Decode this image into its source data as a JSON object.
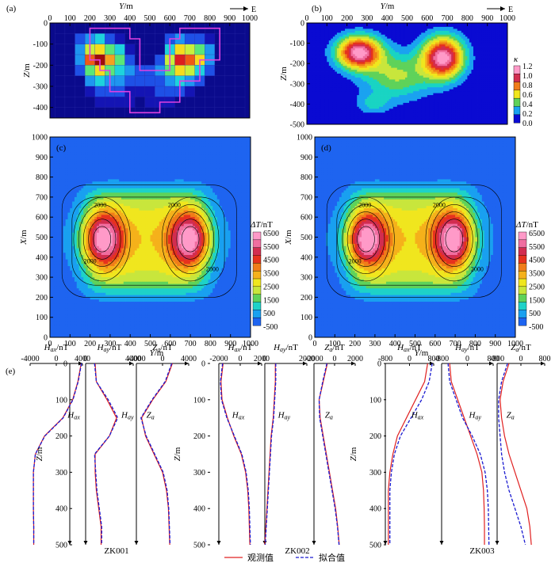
{
  "figure": {
    "legend": {
      "observed": "观测值",
      "fitted": "拟合值"
    },
    "wells": [
      "ZK001",
      "ZK002",
      "ZK003"
    ]
  },
  "chart_data": [
    {
      "id": "a",
      "label": "(a)",
      "type": "heatmap",
      "xlabel": "Y/m",
      "ylabel": "Z/m",
      "direction": "E",
      "xlim": [
        0,
        1000
      ],
      "ylim": [
        -450,
        0
      ],
      "xticks": [
        0,
        100,
        200,
        300,
        400,
        500,
        600,
        700,
        800,
        900,
        1000
      ],
      "yticks": [
        0,
        -100,
        -200,
        -300,
        -400
      ],
      "grid": {
        "x0": 50,
        "dx": 50,
        "nx": 19,
        "y0": 25,
        "dy": 50,
        "ny": 9
      },
      "values": [
        [
          0,
          0,
          0,
          0,
          0,
          0,
          0,
          0,
          0,
          0,
          0,
          0,
          0,
          0,
          0,
          0,
          0,
          0,
          0
        ],
        [
          0,
          0,
          0.3,
          0.4,
          0.5,
          0.3,
          0.2,
          0,
          0,
          0,
          0,
          0.3,
          0.4,
          0.3,
          0.3,
          0.2,
          0,
          0,
          0
        ],
        [
          0,
          0,
          0.35,
          0.7,
          0.8,
          0.6,
          0.45,
          0.2,
          0,
          0,
          0,
          0.5,
          0.8,
          0.7,
          0.6,
          0.4,
          0,
          0,
          0
        ],
        [
          0,
          0,
          0.4,
          1.0,
          1.2,
          0.9,
          0.6,
          0.3,
          0,
          0,
          0.3,
          0.7,
          1.1,
          1.0,
          0.8,
          0.4,
          0,
          0,
          0
        ],
        [
          0,
          0,
          0.3,
          0.6,
          0.8,
          0.6,
          0.5,
          0.4,
          0.3,
          0.3,
          0.4,
          0.6,
          0.8,
          0.7,
          0.5,
          0.3,
          0,
          0,
          0
        ],
        [
          0,
          0,
          0,
          0.4,
          0.5,
          0.4,
          0.35,
          0.3,
          0.25,
          0.25,
          0.3,
          0.4,
          0.5,
          0.4,
          0.3,
          0,
          0,
          0,
          0
        ],
        [
          0,
          0,
          0,
          0.2,
          0.3,
          0.3,
          0.25,
          0.2,
          0.2,
          0.2,
          0.25,
          0.3,
          0.3,
          0.2,
          0,
          0,
          0,
          0,
          0
        ],
        [
          0,
          0,
          0,
          0,
          0.15,
          0.2,
          0.2,
          0.15,
          0.1,
          0.15,
          0.2,
          0.2,
          0,
          0,
          0,
          0,
          0,
          0,
          0
        ],
        [
          0,
          0,
          0,
          0,
          0,
          0,
          0,
          0,
          0,
          0,
          0,
          0,
          0,
          0,
          0,
          0,
          0,
          0,
          0
        ]
      ]
    },
    {
      "id": "b",
      "label": "(b)",
      "type": "heatmap",
      "xlabel": "Y/m",
      "ylabel": "Z/m",
      "direction": "E",
      "xlim": [
        0,
        1000
      ],
      "ylim": [
        -500,
        0
      ],
      "xticks": [
        0,
        100,
        200,
        300,
        400,
        500,
        600,
        700,
        800,
        900,
        1000
      ],
      "yticks": [
        0,
        -100,
        -200,
        -300,
        -400,
        -500
      ],
      "colorbar": {
        "title": "κ",
        "ticks": [
          1.2,
          1.0,
          0.8,
          0.6,
          0.4,
          0.2,
          0.0
        ],
        "colors": [
          "#0a0ad2",
          "#1aa2f0",
          "#19d4c3",
          "#5fd25a",
          "#c8e63c",
          "#f0e61e",
          "#f5b11b",
          "#f07d19",
          "#e6321e",
          "#d22d50",
          "#f06ea0",
          "#ff9ac8"
        ]
      },
      "blobs": [
        {
          "y": 260,
          "z": -145,
          "amp": 1.25,
          "sy": 75,
          "sz": 55
        },
        {
          "y": 680,
          "z": -170,
          "amp": 1.25,
          "sy": 70,
          "sz": 70
        },
        {
          "y": 450,
          "z": -260,
          "amp": 0.45,
          "sy": 120,
          "sz": 80
        },
        {
          "y": 330,
          "z": -400,
          "amp": 0.22,
          "sy": 60,
          "sz": 35
        }
      ]
    },
    {
      "id": "c",
      "label": "(c)",
      "type": "heatmap",
      "xlabel": "Y/m",
      "ylabel": "X/m",
      "xlim": [
        0,
        1000
      ],
      "ylim": [
        0,
        1000
      ],
      "xticks": [
        0,
        100,
        200,
        300,
        400,
        500,
        600,
        700,
        800,
        900,
        1000
      ],
      "yticks": [
        0,
        100,
        200,
        300,
        400,
        500,
        600,
        700,
        800,
        900,
        1000
      ],
      "contour_labels": [
        "2000",
        "2000",
        "2000",
        "2000"
      ],
      "colorbar": {
        "title": "ΔT/nT",
        "ticks": [
          6500,
          5500,
          4500,
          3500,
          2500,
          1500,
          500,
          -500
        ],
        "colors": [
          "#1e64f0",
          "#19a0f0",
          "#1ed2c8",
          "#5fd25a",
          "#c8e63c",
          "#f0e61e",
          "#f5b11b",
          "#f07d19",
          "#e6321e",
          "#d22d50",
          "#f06ea0",
          "#ff9ac8"
        ]
      },
      "sources": [
        {
          "y": 260,
          "x": 490
        },
        {
          "y": 700,
          "x": 490
        }
      ]
    },
    {
      "id": "d",
      "label": "(d)",
      "type": "heatmap",
      "xlabel": "Y/m",
      "ylabel": "X/m",
      "xlim": [
        0,
        1000
      ],
      "ylim": [
        0,
        1000
      ],
      "xticks": [
        0,
        100,
        200,
        300,
        400,
        500,
        600,
        700,
        800,
        900,
        1000
      ],
      "yticks": [
        0,
        100,
        200,
        300,
        400,
        500,
        600,
        700,
        800,
        900,
        1000
      ],
      "contour_labels": [
        "2000",
        "2000",
        "2000",
        "2000"
      ],
      "colorbar": {
        "title": "ΔT/nT",
        "ticks": [
          6500,
          5500,
          4500,
          3500,
          2500,
          1500,
          500,
          -500
        ],
        "colors": [
          "#1e64f0",
          "#19a0f0",
          "#1ed2c8",
          "#5fd25a",
          "#c8e63c",
          "#f0e61e",
          "#f5b11b",
          "#f07d19",
          "#e6321e",
          "#d22d50",
          "#f06ea0",
          "#ff9ac8"
        ]
      },
      "sources": [
        {
          "y": 255,
          "x": 490
        },
        {
          "y": 695,
          "x": 490
        }
      ]
    },
    {
      "id": "e",
      "label": "(e)",
      "type": "line",
      "ylabel": "Z/m",
      "ylim": [
        0,
        500
      ],
      "yticks": [
        0,
        100,
        200,
        300,
        400,
        500
      ],
      "wells": [
        {
          "name": "ZK001",
          "panels": [
            {
              "xlabel": "Hax/nT",
              "curve": "Hax",
              "xlim": [
                -4000,
                4000
              ],
              "xticks": [
                -4000,
                0,
                4000
              ],
              "depth": [
                0,
                50,
                100,
                150,
                200,
                250,
                300,
                350,
                400,
                450,
                500
              ],
              "observed": [
                3800,
                3300,
                2500,
                1000,
                -1800,
                -3200,
                -3500,
                -3500,
                -3500,
                -3450,
                -3450
              ],
              "fitted": [
                3850,
                3350,
                2550,
                1050,
                -1750,
                -3200,
                -3500,
                -3500,
                -3500,
                -3450,
                -3450
              ]
            },
            {
              "xlabel": "Hay/nT",
              "curve": "Hay",
              "xlim": [
                0,
                4000
              ],
              "xticks": [
                0,
                4000
              ],
              "depth": [
                0,
                50,
                100,
                150,
                200,
                250,
                300,
                350,
                400,
                450,
                500
              ],
              "observed": [
                800,
                900,
                1800,
                2600,
                2000,
                800,
                800,
                900,
                1100,
                1300,
                1300
              ],
              "fitted": [
                750,
                900,
                1900,
                2700,
                2000,
                750,
                850,
                950,
                1150,
                1350,
                1350
              ]
            },
            {
              "xlabel": "Za/nT",
              "curve": "Za",
              "xlim": [
                -4000,
                4000
              ],
              "xticks": [
                -4000,
                0,
                4000
              ],
              "depth": [
                0,
                50,
                100,
                150,
                200,
                250,
                300,
                350,
                400,
                450,
                500
              ],
              "observed": [
                1500,
                500,
                -1500,
                -3200,
                -2600,
                -1300,
                0,
                600,
                900,
                1000,
                1100
              ],
              "fitted": [
                1400,
                400,
                -1600,
                -3300,
                -2500,
                -1200,
                100,
                700,
                950,
                1050,
                1150
              ]
            }
          ]
        },
        {
          "name": "ZK002",
          "panels": [
            {
              "xlabel": "Hax/nT",
              "curve": "Hax",
              "xlim": [
                -2000,
                2000
              ],
              "xticks": [
                -2000,
                0,
                2000
              ],
              "depth": [
                0,
                50,
                100,
                150,
                200,
                250,
                300,
                350,
                400,
                450,
                500
              ],
              "observed": [
                -1600,
                -1800,
                -1700,
                -1200,
                -600,
                100,
                500,
                700,
                800,
                850,
                900
              ],
              "fitted": [
                -1650,
                -1850,
                -1750,
                -1250,
                -550,
                150,
                550,
                750,
                850,
                900,
                950
              ]
            },
            {
              "xlabel": "Hay/nT",
              "curve": "Hay",
              "xlim": [
                0,
                2000
              ],
              "xticks": [
                0,
                2000
              ],
              "depth": [
                0,
                50,
                100,
                150,
                200,
                250,
                300,
                350,
                400,
                450,
                500
              ],
              "observed": [
                500,
                500,
                450,
                400,
                300,
                250,
                200,
                150,
                100,
                50,
                0
              ],
              "fitted": [
                520,
                520,
                470,
                420,
                320,
                270,
                220,
                170,
                120,
                70,
                20
              ]
            },
            {
              "xlabel": "Za/nT",
              "curve": "Za",
              "xlim": [
                -2000,
                2000
              ],
              "xticks": [
                -2000,
                0,
                2000
              ],
              "depth": [
                0,
                50,
                100,
                150,
                200,
                250,
                300,
                350,
                400,
                450,
                500
              ],
              "observed": [
                -700,
                -1100,
                -1500,
                -1400,
                -1100,
                -800,
                -500,
                -200,
                100,
                300,
                450
              ],
              "fitted": [
                -750,
                -1150,
                -1500,
                -1450,
                -1150,
                -850,
                -550,
                -250,
                50,
                280,
                430
              ]
            }
          ]
        },
        {
          "name": "ZK003",
          "panels": [
            {
              "xlabel": "Hax/nT",
              "curve": "Hax",
              "xlim": [
                -800,
                800
              ],
              "xticks": [
                -800,
                0,
                800
              ],
              "depth": [
                0,
                50,
                100,
                150,
                200,
                250,
                300,
                350,
                400,
                450,
                500
              ],
              "observed": [
                600,
                500,
                200,
                -100,
                -400,
                -550,
                -650,
                -700,
                -700,
                -700,
                -700
              ],
              "fitted": [
                750,
                650,
                400,
                50,
                -300,
                -500,
                -600,
                -650,
                -650,
                -650,
                -650
              ]
            },
            {
              "xlabel": "Hay/nT",
              "curve": "Hay",
              "xlim": [
                -800,
                800
              ],
              "xticks": [
                -800,
                0,
                800
              ],
              "depth": [
                0,
                50,
                100,
                150,
                200,
                250,
                300,
                350,
                400,
                450,
                500
              ],
              "observed": [
                -550,
                -500,
                -300,
                -100,
                100,
                300,
                450,
                500,
                520,
                530,
                530
              ],
              "fitted": [
                -600,
                -550,
                -350,
                -150,
                150,
                400,
                550,
                620,
                650,
                660,
                670
              ]
            },
            {
              "xlabel": "Za/nT",
              "curve": "Za",
              "xlim": [
                -800,
                800
              ],
              "xticks": [
                -800,
                0,
                800
              ],
              "depth": [
                0,
                50,
                100,
                150,
                200,
                250,
                300,
                350,
                400,
                450,
                500
              ],
              "observed": [
                -400,
                -600,
                -700,
                -650,
                -550,
                -400,
                -200,
                0,
                200,
                300,
                350
              ],
              "fitted": [
                -450,
                -650,
                -750,
                -750,
                -700,
                -650,
                -550,
                -400,
                -200,
                0,
                150
              ]
            }
          ]
        }
      ]
    }
  ]
}
